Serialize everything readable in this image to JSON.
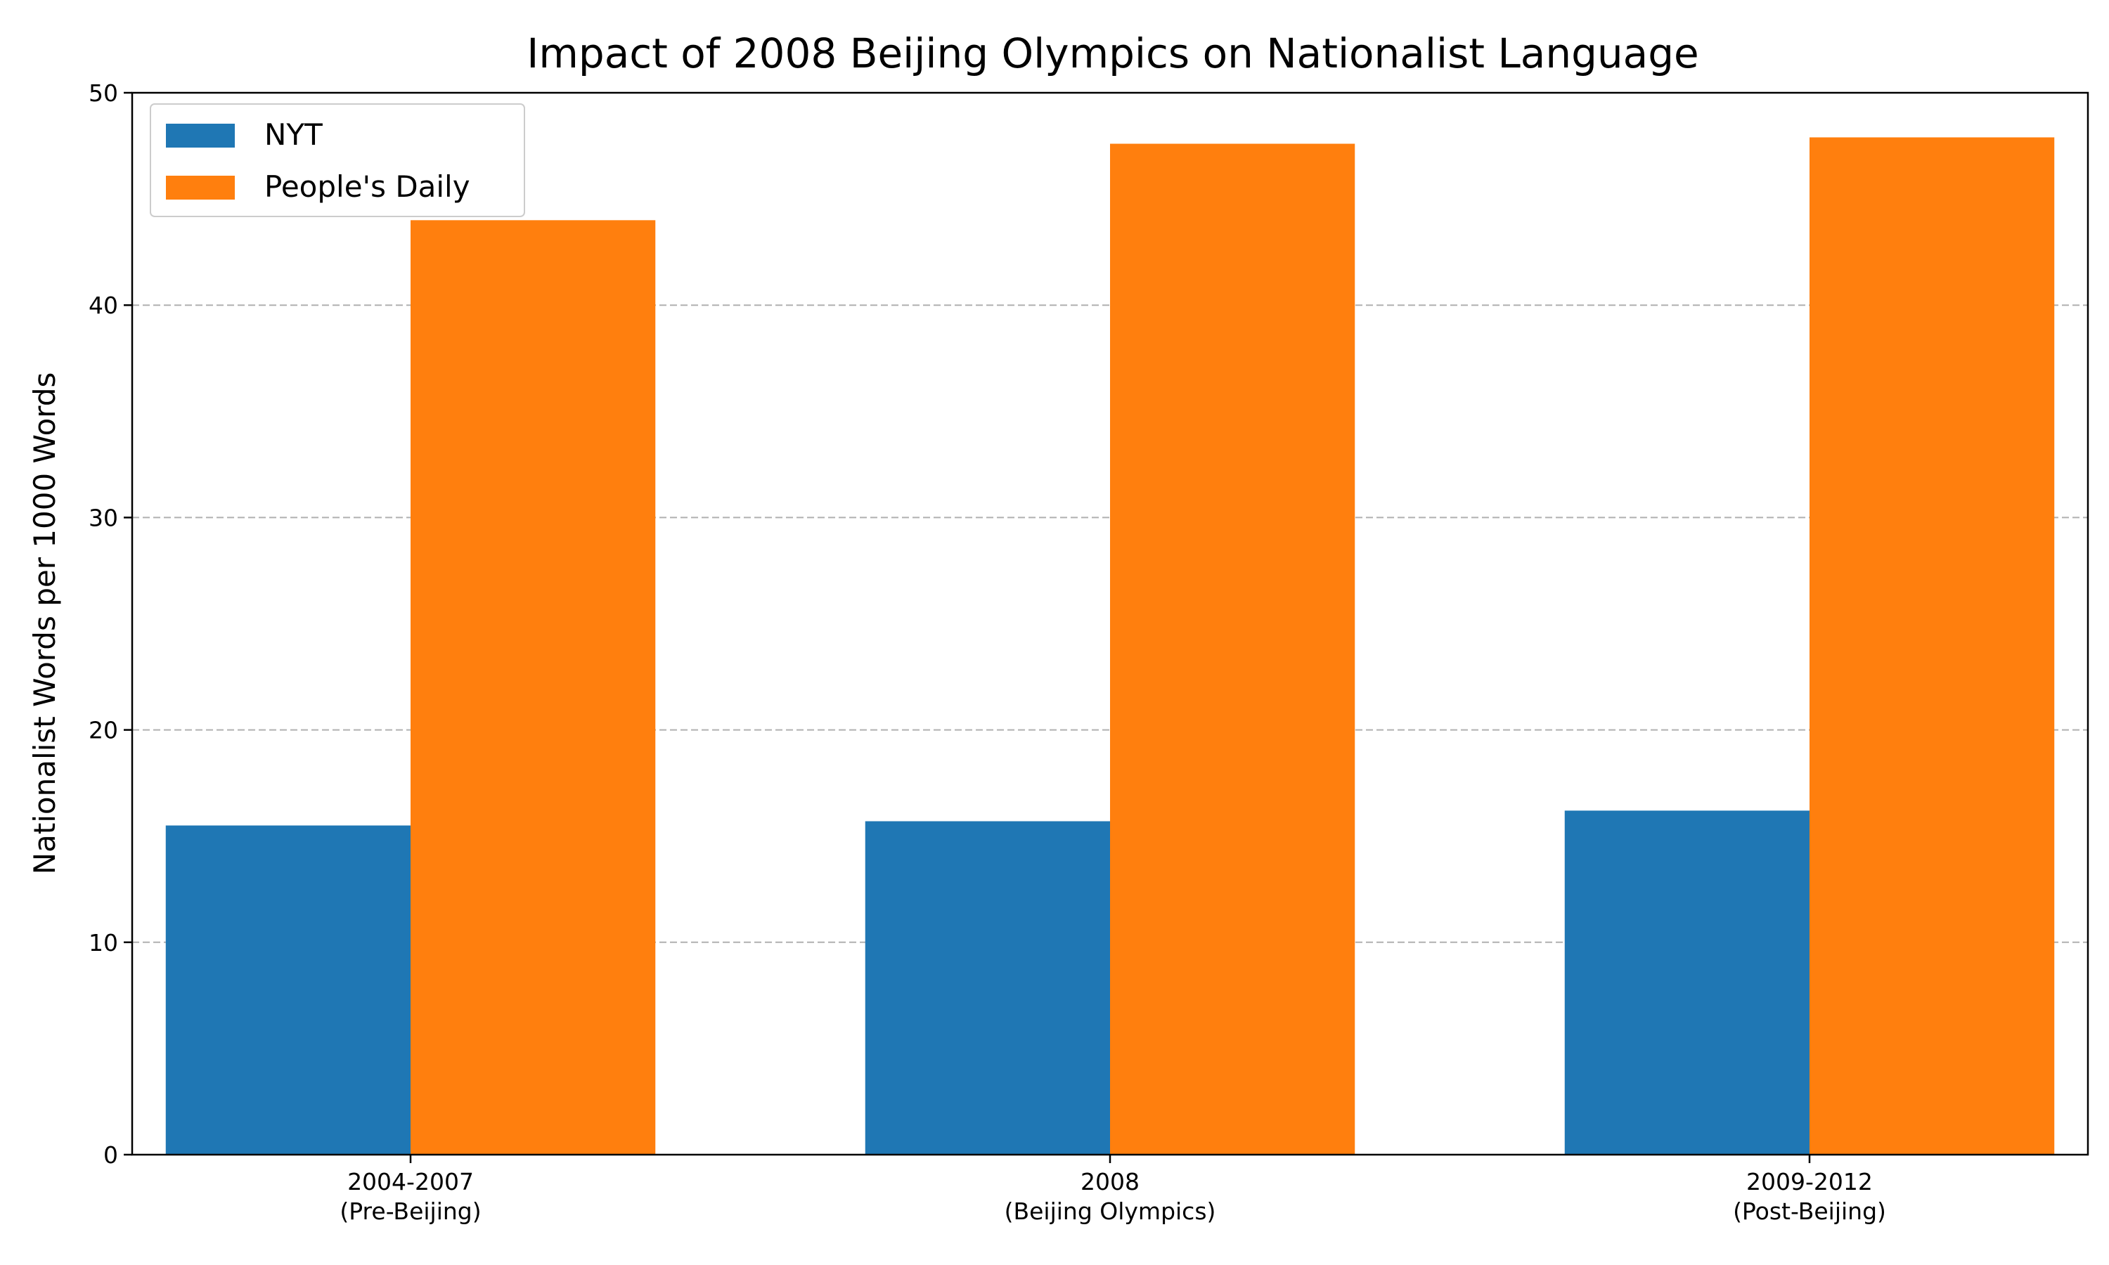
{
  "chart_data": {
    "type": "bar",
    "title": "Impact of 2008 Beijing Olympics on Nationalist Language",
    "xlabel": "",
    "ylabel": "Nationalist Words per 1000 Words",
    "categories": [
      [
        "2004-2007",
        "(Pre-Beijing)"
      ],
      [
        "2008",
        "(Beijing Olympics)"
      ],
      [
        "2009-2012",
        "(Post-Beijing)"
      ]
    ],
    "series": [
      {
        "name": "NYT",
        "color": "#1f77b4",
        "values": [
          15.5,
          15.7,
          16.2
        ]
      },
      {
        "name": "People's Daily",
        "color": "#ff7f0e",
        "values": [
          44.0,
          47.6,
          47.9
        ]
      }
    ],
    "ylim": [
      0,
      50
    ],
    "yticks": [
      0,
      10,
      20,
      30,
      40,
      50
    ],
    "grid": {
      "y": true,
      "style": "dashed",
      "color": "#b0b0b0"
    },
    "legend": "top-left"
  }
}
